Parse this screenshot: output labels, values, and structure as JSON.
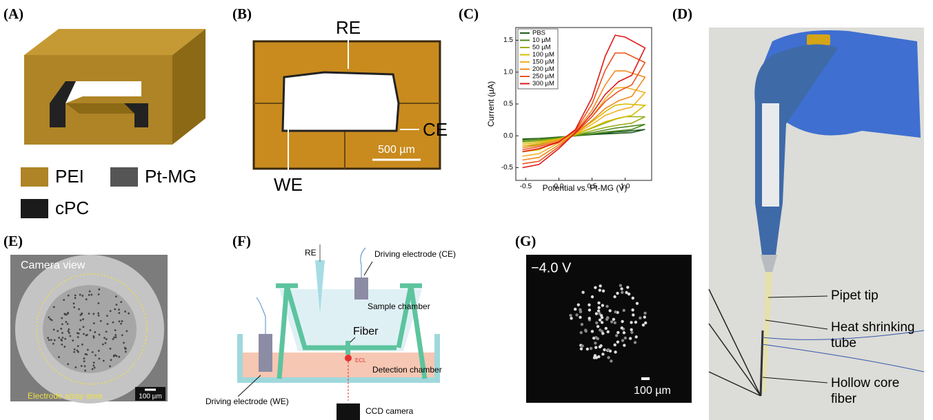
{
  "panels": {
    "A": {
      "label": "(A)",
      "legend": [
        "PEI",
        "Pt-MG",
        "cPC"
      ]
    },
    "B": {
      "label": "(B)",
      "top": "RE",
      "right": "CE",
      "bottom": "WE",
      "scale": "500 µm"
    },
    "C": {
      "label": "(C)"
    },
    "D": {
      "label": "(D)",
      "callouts": [
        [
          "Pipet tip"
        ],
        [
          "Heat shrinking",
          "tube"
        ],
        [
          "Hollow core",
          "fiber"
        ]
      ]
    },
    "E": {
      "label": "(E)",
      "view": "Camera view",
      "area": "Electrode array area",
      "scale": "100 µm"
    },
    "F": {
      "label": "(F)",
      "re": "RE",
      "ce": "Driving electrode (CE)",
      "sample": "Sample chamber",
      "fiber": "Fiber",
      "ecl": "ECL",
      "detection": "Detection chamber",
      "we": "Driving electrode (WE)",
      "camera": "CCD camera"
    },
    "G": {
      "label": "(G)",
      "voltage": "−4.0 V",
      "scale": "100 µm"
    }
  },
  "chart_data": {
    "type": "line",
    "x_label": "Potential vs. Pt-MG (V)",
    "y_label": "Current (µA)",
    "x": [
      -0.55,
      -0.3,
      0,
      0.25,
      0.5,
      0.7,
      0.85,
      1.0,
      1.3,
      1.1,
      0.9,
      0.7,
      0.5,
      0.25,
      0,
      -0.3,
      -0.55
    ],
    "series": [
      {
        "name": "PBS",
        "color": "#1f5a1f",
        "values": [
          -0.05,
          -0.04,
          -0.02,
          0.0,
          0.02,
          0.04,
          0.06,
          0.07,
          0.1,
          0.05,
          0.04,
          0.03,
          0.02,
          0.0,
          -0.02,
          -0.04,
          -0.06
        ]
      },
      {
        "name": "10 µM",
        "color": "#4d8a1c",
        "values": [
          -0.07,
          -0.05,
          -0.03,
          0.01,
          0.05,
          0.09,
          0.12,
          0.14,
          0.18,
          0.1,
          0.08,
          0.06,
          0.03,
          0.0,
          -0.03,
          -0.07,
          -0.09
        ]
      },
      {
        "name": "50 µM",
        "color": "#9aae14",
        "values": [
          -0.1,
          -0.08,
          -0.04,
          0.02,
          0.12,
          0.2,
          0.26,
          0.3,
          0.3,
          0.2,
          0.17,
          0.13,
          0.08,
          0.01,
          -0.05,
          -0.14,
          -0.16
        ]
      },
      {
        "name": "100 µM",
        "color": "#d6bc00",
        "values": [
          -0.13,
          -0.1,
          -0.05,
          0.04,
          0.22,
          0.38,
          0.48,
          0.5,
          0.48,
          0.32,
          0.28,
          0.22,
          0.13,
          0.02,
          -0.08,
          -0.22,
          -0.25
        ]
      },
      {
        "name": "150 µM",
        "color": "#f2b024",
        "values": [
          -0.16,
          -0.12,
          -0.06,
          0.05,
          0.3,
          0.58,
          0.75,
          0.76,
          0.68,
          0.45,
          0.4,
          0.32,
          0.18,
          0.03,
          -0.11,
          -0.28,
          -0.32
        ]
      },
      {
        "name": "200 µM",
        "color": "#f28a22",
        "values": [
          -0.19,
          -0.15,
          -0.07,
          0.07,
          0.4,
          0.8,
          1.02,
          1.02,
          0.92,
          0.62,
          0.55,
          0.43,
          0.24,
          0.04,
          -0.14,
          -0.34,
          -0.38
        ]
      },
      {
        "name": "250 µM",
        "color": "#ea521c",
        "values": [
          -0.22,
          -0.17,
          -0.09,
          0.08,
          0.5,
          1.03,
          1.3,
          1.3,
          1.15,
          0.8,
          0.7,
          0.54,
          0.3,
          0.04,
          -0.17,
          -0.4,
          -0.44
        ]
      },
      {
        "name": "300 µM",
        "color": "#e01818",
        "values": [
          -0.25,
          -0.2,
          -0.1,
          0.1,
          0.6,
          1.25,
          1.58,
          1.55,
          1.38,
          0.95,
          0.85,
          0.65,
          0.35,
          0.05,
          -0.2,
          -0.45,
          -0.5
        ]
      }
    ],
    "xlim": [
      -0.65,
      1.4
    ],
    "xticks": [
      -0.5,
      {
        "value": 0,
        "label": "0.0"
      },
      0.5,
      {
        "value": 1,
        "label": "1.0"
      }
    ],
    "ylim": [
      -0.7,
      1.7
    ],
    "yticks": [
      -0.5,
      {
        "value": 0,
        "label": "0.0"
      },
      0.5,
      {
        "value": 1,
        "label": "1.0"
      },
      1.5
    ]
  }
}
